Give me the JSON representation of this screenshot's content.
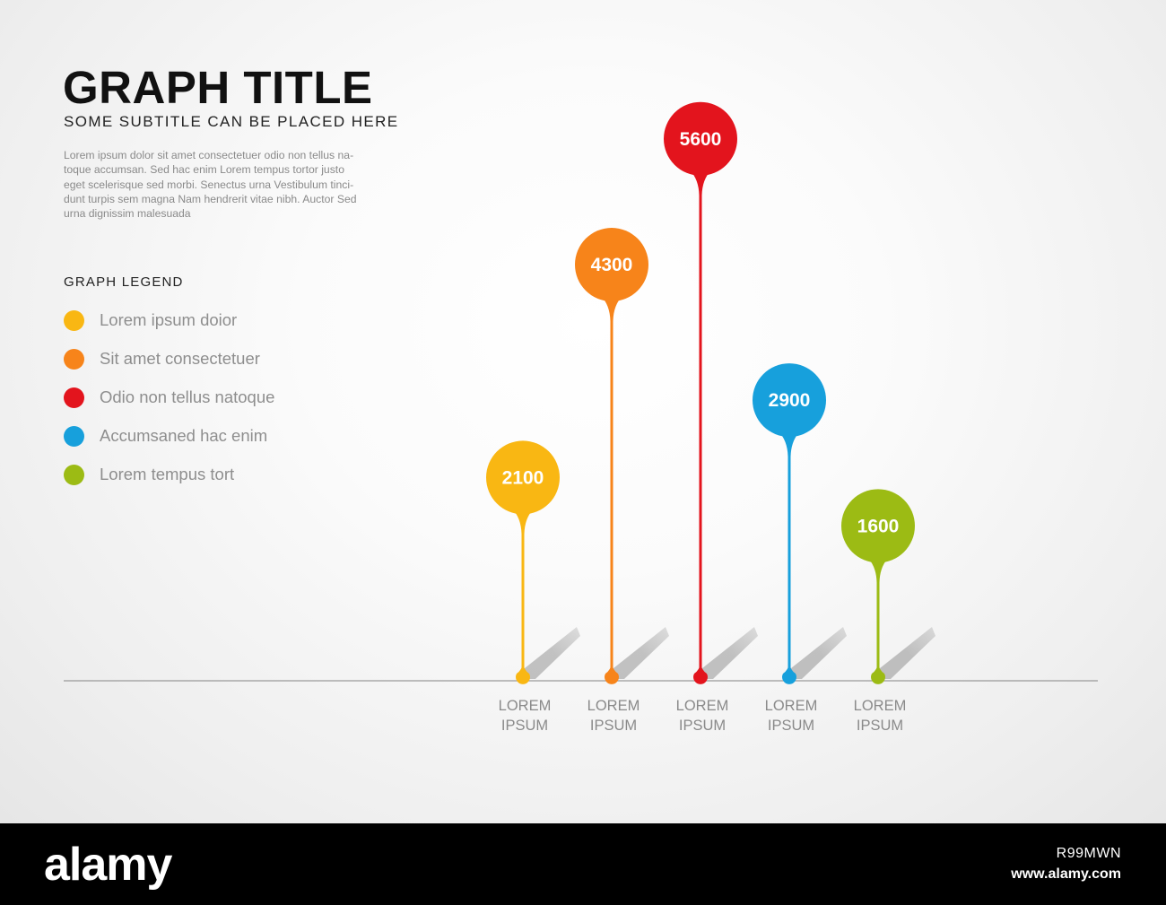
{
  "title": "GRAPH TITLE",
  "subtitle": "SOME SUBTITLE CAN BE PLACED HERE",
  "body_lines": [
    "Lorem ipsum dolor sit amet consectetuer odio non tellus na-",
    "toque accumsan. Sed hac enim Lorem tempus tortor justo",
    "eget scelerisque sed morbi. Senectus urna Vestibulum tinci-",
    "dunt turpis sem magna Nam hendrerit vitae nibh. Auctor Sed",
    "urna dignissim malesuada"
  ],
  "legend": {
    "title": "GRAPH LEGEND",
    "items": [
      {
        "label": "Lorem ipsum doior",
        "color": "#f9b713"
      },
      {
        "label": "Sit amet consectetuer",
        "color": "#f7841a"
      },
      {
        "label": "Odio non tellus natoque",
        "color": "#e3141d"
      },
      {
        "label": "Accumsaned hac enim",
        "color": "#17a0dc"
      },
      {
        "label": "Lorem tempus tort",
        "color": "#9cbb14"
      }
    ]
  },
  "chart_data": {
    "type": "bar",
    "style": "lollipop pins with value labels, no y axis",
    "categories": [
      [
        "LOREM",
        "IPSUM"
      ],
      [
        "LOREM",
        "IPSUM"
      ],
      [
        "LOREM",
        "IPSUM"
      ],
      [
        "LOREM",
        "IPSUM"
      ],
      [
        "LOREM",
        "IPSUM"
      ]
    ],
    "values": [
      2100,
      4300,
      5600,
      2900,
      1600
    ],
    "colors": [
      "#f9b713",
      "#f7841a",
      "#e3141d",
      "#17a0dc",
      "#9cbb14"
    ],
    "data_labels": [
      "2100",
      "4300",
      "5600",
      "2900",
      "1600"
    ],
    "baseline": true,
    "grid": false
  },
  "footer": {
    "logo": "alamy",
    "image_id": "R99MWN",
    "url": "www.alamy.com"
  }
}
